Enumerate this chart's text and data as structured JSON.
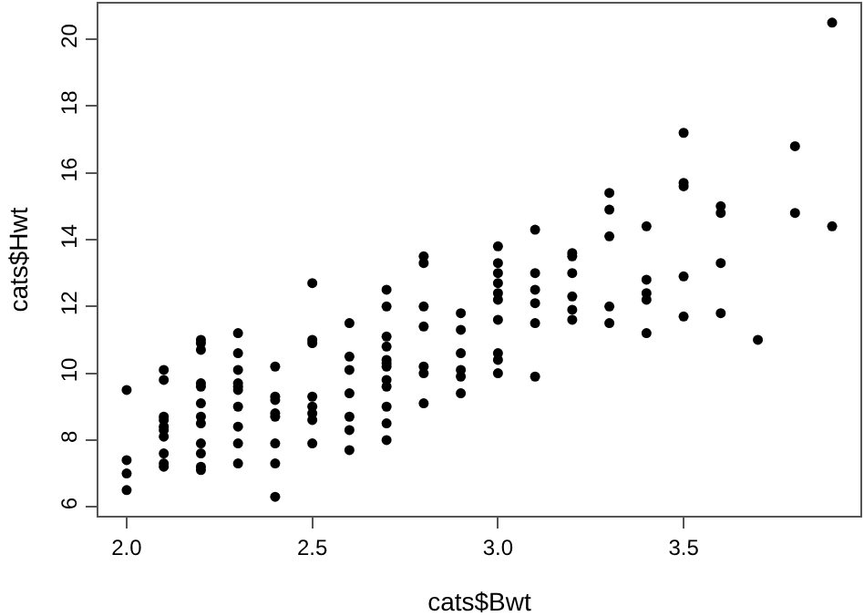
{
  "chart_data": {
    "type": "scatter",
    "xlabel": "cats$Bwt",
    "ylabel": "cats$Hwt",
    "x": [
      2.0,
      2.0,
      2.0,
      2.0,
      2.1,
      2.1,
      2.1,
      2.1,
      2.1,
      2.1,
      2.1,
      2.1,
      2.1,
      2.1,
      2.2,
      2.2,
      2.2,
      2.2,
      2.2,
      2.2,
      2.2,
      2.2,
      2.2,
      2.2,
      2.2,
      2.2,
      2.3,
      2.3,
      2.3,
      2.3,
      2.3,
      2.3,
      2.3,
      2.3,
      2.3,
      2.3,
      2.4,
      2.4,
      2.4,
      2.4,
      2.4,
      2.4,
      2.4,
      2.4,
      2.5,
      2.5,
      2.5,
      2.5,
      2.5,
      2.5,
      2.5,
      2.5,
      2.6,
      2.6,
      2.6,
      2.6,
      2.6,
      2.6,
      2.6,
      2.7,
      2.7,
      2.7,
      2.7,
      2.7,
      2.7,
      2.7,
      2.7,
      2.7,
      2.7,
      2.7,
      2.7,
      2.8,
      2.8,
      2.8,
      2.8,
      2.8,
      2.8,
      2.8,
      2.9,
      2.9,
      2.9,
      2.9,
      2.9,
      2.9,
      3.0,
      3.0,
      3.0,
      3.0,
      3.0,
      3.0,
      3.0,
      3.0,
      3.0,
      3.0,
      3.1,
      3.1,
      3.1,
      3.1,
      3.1,
      3.1,
      3.2,
      3.2,
      3.2,
      3.2,
      3.2,
      3.2,
      3.3,
      3.3,
      3.3,
      3.3,
      3.3,
      3.4,
      3.4,
      3.4,
      3.4,
      3.4,
      3.5,
      3.5,
      3.5,
      3.5,
      3.5,
      3.6,
      3.6,
      3.6,
      3.6,
      3.7,
      3.8,
      3.8,
      3.9,
      3.9
    ],
    "values": [
      9.5,
      7.4,
      7.0,
      6.5,
      10.1,
      9.8,
      8.7,
      8.6,
      8.4,
      8.3,
      8.1,
      7.6,
      7.3,
      7.2,
      11.0,
      10.9,
      10.7,
      9.7,
      9.6,
      9.1,
      8.7,
      8.5,
      7.9,
      7.6,
      7.2,
      7.1,
      11.2,
      10.6,
      10.1,
      9.7,
      9.6,
      9.5,
      9.0,
      8.4,
      7.9,
      7.3,
      10.2,
      9.3,
      9.2,
      8.8,
      8.7,
      7.9,
      7.3,
      6.3,
      12.7,
      11.0,
      10.9,
      9.3,
      9.0,
      8.8,
      8.6,
      7.9,
      11.5,
      10.5,
      10.1,
      9.4,
      8.7,
      8.3,
      7.7,
      12.5,
      12.0,
      11.1,
      10.8,
      10.4,
      10.3,
      10.2,
      9.8,
      9.6,
      9.0,
      8.5,
      8.0,
      13.5,
      13.3,
      12.0,
      11.4,
      10.2,
      10.0,
      9.1,
      11.8,
      11.3,
      10.6,
      10.1,
      9.9,
      9.4,
      13.8,
      13.3,
      13.0,
      12.7,
      12.4,
      12.2,
      11.6,
      10.6,
      10.4,
      10.0,
      14.3,
      13.0,
      12.5,
      12.1,
      11.5,
      9.9,
      13.6,
      13.5,
      13.0,
      12.3,
      11.9,
      11.6,
      15.4,
      14.9,
      14.1,
      12.0,
      11.5,
      14.4,
      12.8,
      12.4,
      12.2,
      11.2,
      17.2,
      15.7,
      15.6,
      12.9,
      11.7,
      15.0,
      14.8,
      13.3,
      11.8,
      11.0,
      16.8,
      14.8,
      20.5,
      14.4
    ],
    "color": "#000000",
    "marker": "circle",
    "xlim": [
      1.924,
      3.976
    ],
    "xticks": [
      {
        "value": 2.0,
        "label": "2.0"
      },
      2.5,
      {
        "value": 3.0,
        "label": "3.0"
      },
      3.5
    ],
    "ylim": [
      5.732,
      21.068
    ],
    "yticks": [
      6,
      8,
      10,
      12,
      14,
      16,
      18,
      20
    ]
  }
}
